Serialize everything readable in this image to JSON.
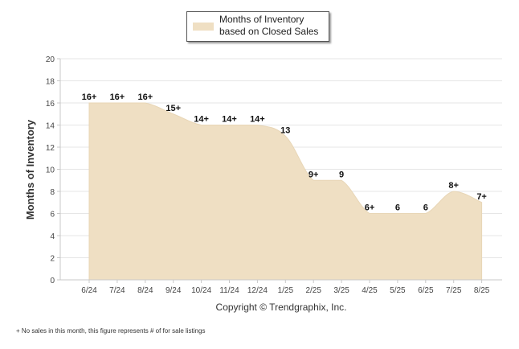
{
  "legend": {
    "label": "Months of Inventory based on Closed Sales",
    "color": "#efdfc3"
  },
  "copyright": "Copyright © Trendgraphix, Inc.",
  "footnote": "+ No sales in this month, this figure represents # of for sale listings",
  "chart_data": {
    "type": "area",
    "title": "",
    "xlabel": "",
    "ylabel": "Months of Inventory",
    "ylim": [
      0,
      20
    ],
    "yticks": [
      0,
      2,
      4,
      6,
      8,
      10,
      12,
      14,
      16,
      18,
      20
    ],
    "grid": true,
    "legend_position": "top-center",
    "categories": [
      "6/24",
      "7/24",
      "8/24",
      "9/24",
      "10/24",
      "11/24",
      "12/24",
      "1/25",
      "2/25",
      "3/25",
      "4/25",
      "5/25",
      "6/25",
      "7/25",
      "8/25"
    ],
    "series": [
      {
        "name": "Months of Inventory based on Closed Sales",
        "color": "#efdfc3",
        "values": [
          16,
          16,
          16,
          15,
          14,
          14,
          14,
          13,
          9,
          9,
          6,
          6,
          6,
          8,
          7
        ],
        "labels": [
          "16+",
          "16+",
          "16+",
          "15+",
          "14+",
          "14+",
          "14+",
          "13",
          "9+",
          "9",
          "6+",
          "6",
          "6",
          "8+",
          "7+"
        ]
      }
    ]
  }
}
